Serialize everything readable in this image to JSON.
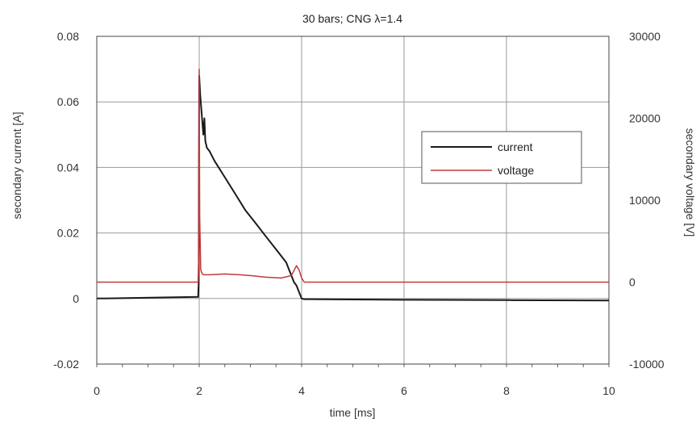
{
  "chart_data": {
    "type": "line",
    "title": "30 bars; CNG λ=1.4",
    "xlabel": "time [ms]",
    "ylabel_left": "secondary current [A]",
    "ylabel_right": "secondary voltage [V]",
    "xlim": [
      0,
      10
    ],
    "ylim_left": [
      -0.02,
      0.08
    ],
    "ylim_right": [
      -10000,
      30000
    ],
    "x_ticks": [
      "0",
      "2",
      "4",
      "6",
      "8",
      "10"
    ],
    "y_ticks_left": [
      "-0.02",
      "0",
      "0.02",
      "0.04",
      "0.06",
      "0.08"
    ],
    "y_ticks_right": [
      "-10000",
      "0",
      "10000",
      "20000",
      "30000"
    ],
    "grid": true,
    "legend_position": "right",
    "series": [
      {
        "name": "current",
        "axis": "left",
        "color": "#1a1a1a",
        "x": [
          0,
          1.98,
          1.99,
          1.995,
          2.0,
          2.02,
          2.05,
          2.08,
          2.1,
          2.12,
          2.15,
          2.2,
          2.3,
          2.5,
          2.7,
          2.9,
          3.1,
          3.3,
          3.5,
          3.6,
          3.7,
          3.75,
          3.8,
          3.85,
          3.9,
          3.95,
          4.0,
          4.05,
          6.0,
          8.0,
          10.0
        ],
        "y": [
          0.0,
          0.0005,
          0.005,
          0.045,
          0.068,
          0.062,
          0.056,
          0.05,
          0.055,
          0.048,
          0.046,
          0.045,
          0.042,
          0.037,
          0.032,
          0.027,
          0.023,
          0.019,
          0.015,
          0.013,
          0.011,
          0.009,
          0.007,
          0.005,
          0.004,
          0.002,
          0.0,
          -0.0002,
          -0.0004,
          -0.0005,
          -0.0006
        ]
      },
      {
        "name": "voltage",
        "axis": "right",
        "color": "#c0393b",
        "x": [
          0,
          1.98,
          1.99,
          2.0,
          2.01,
          2.03,
          2.06,
          2.1,
          2.2,
          2.5,
          2.8,
          3.0,
          3.3,
          3.6,
          3.8,
          3.9,
          3.95,
          4.0,
          4.05,
          4.1,
          6.0,
          8.0,
          10.0
        ],
        "y": [
          0,
          0,
          3000,
          26000,
          8000,
          1500,
          1000,
          900,
          900,
          1000,
          900,
          800,
          600,
          500,
          800,
          2000,
          1500,
          500,
          0,
          0,
          0,
          0,
          0
        ]
      }
    ]
  }
}
